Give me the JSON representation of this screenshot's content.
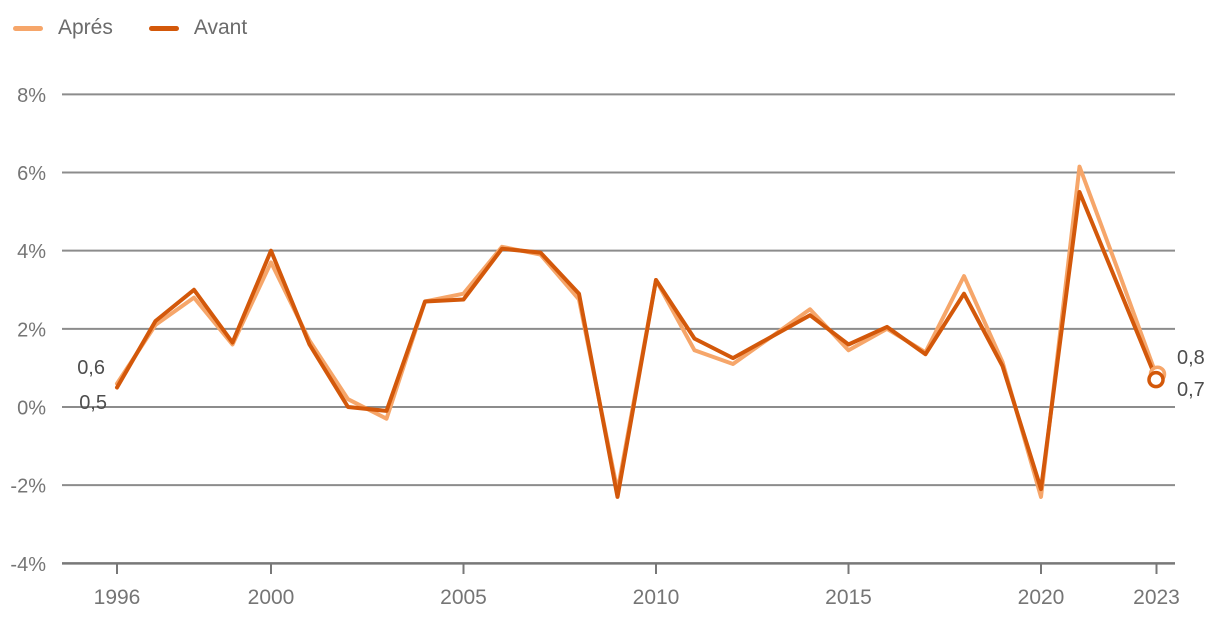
{
  "legend": {
    "items": [
      {
        "label": "Aprés",
        "color": "#F6A66A"
      },
      {
        "label": "Avant",
        "color": "#D3580A"
      }
    ]
  },
  "chart_data": {
    "type": "line",
    "title": "",
    "xlabel": "",
    "ylabel": "",
    "x": [
      1996,
      1997,
      1998,
      1999,
      2000,
      2001,
      2002,
      2003,
      2004,
      2005,
      2006,
      2007,
      2008,
      2009,
      2010,
      2011,
      2012,
      2013,
      2014,
      2015,
      2016,
      2017,
      2018,
      2019,
      2020,
      2021,
      2022,
      2023
    ],
    "series": [
      {
        "name": "Aprés",
        "color": "#F6A66A",
        "values": [
          0.6,
          2.1,
          2.8,
          1.6,
          3.7,
          1.7,
          0.2,
          -0.3,
          2.7,
          2.9,
          4.1,
          3.9,
          2.75,
          -2.15,
          3.25,
          1.45,
          1.1,
          1.8,
          2.5,
          1.45,
          2.0,
          1.4,
          3.35,
          1.15,
          -2.3,
          6.15,
          3.5,
          0.8
        ]
      },
      {
        "name": "Avant",
        "color": "#D3580A",
        "values": [
          0.5,
          2.2,
          3.0,
          1.65,
          4.0,
          1.6,
          0.0,
          -0.1,
          2.7,
          2.75,
          4.05,
          3.95,
          2.9,
          -2.3,
          3.25,
          1.75,
          1.25,
          1.8,
          2.35,
          1.6,
          2.05,
          1.35,
          2.9,
          1.05,
          -2.1,
          5.5,
          3.1,
          0.7
        ]
      }
    ],
    "ylim": [
      -4,
      8
    ],
    "y_ticks": [
      8,
      6,
      4,
      2,
      0,
      -2,
      -4
    ],
    "y_tick_labels": [
      "8%",
      "6%",
      "4%",
      "2%",
      "0%",
      "-2%",
      "-4%"
    ],
    "x_tick_years": [
      1996,
      2000,
      2005,
      2010,
      2015,
      2020,
      2023
    ],
    "x_tick_labels": [
      "1996",
      "2000",
      "2005",
      "2010",
      "2015",
      "2020",
      "2023"
    ],
    "grid": true,
    "legend_position": "top-left",
    "end_marker": "open-circle",
    "annotations": {
      "start_labels": [
        "0,6",
        "0,5"
      ],
      "end_labels": [
        "0,8",
        "0,7"
      ]
    }
  },
  "colors": {
    "grid": "#8c8c8c",
    "axis": "#787878",
    "tick_label": "#757575",
    "data_label": "#4d4d4d",
    "legend_label": "#6b6b6b",
    "background": "#ffffff"
  }
}
